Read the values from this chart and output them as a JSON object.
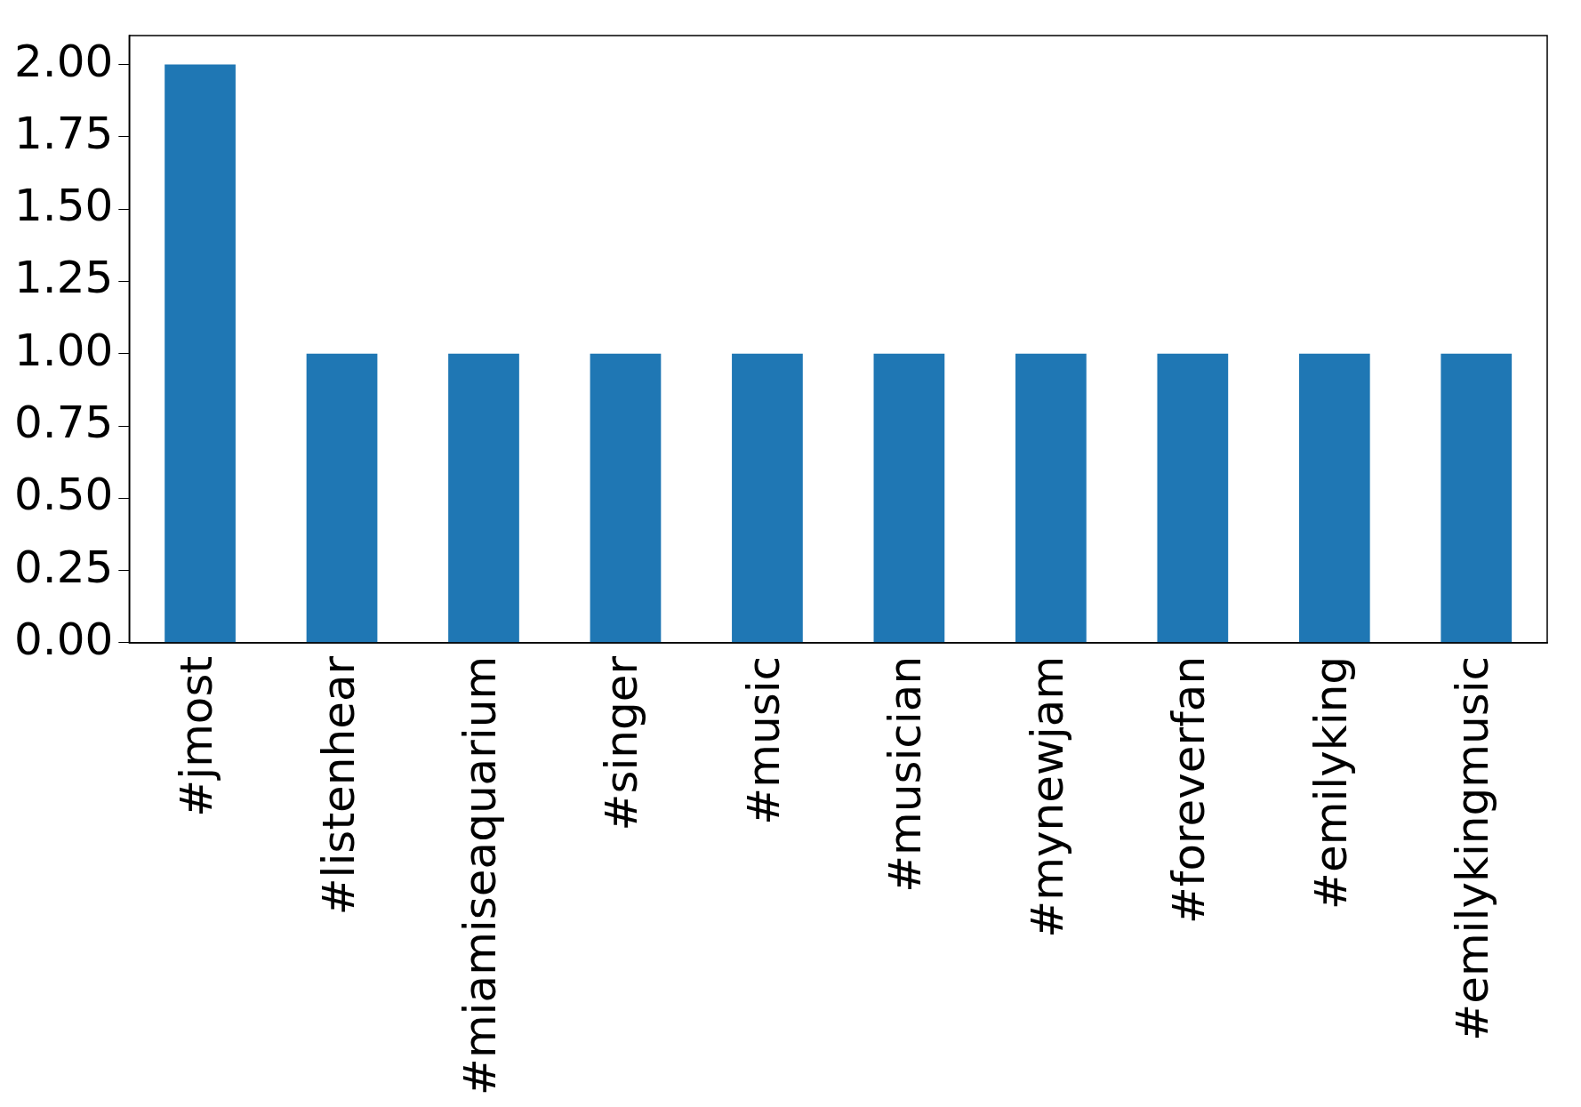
{
  "chart_data": {
    "type": "bar",
    "categories": [
      "#jmost",
      "#listenhear",
      "#miamiseaquarium",
      "#singer",
      "#music",
      "#musician",
      "#mynewjam",
      "#foreverfan",
      "#emilyking",
      "#emilykingmusic"
    ],
    "values": [
      2,
      1,
      1,
      1,
      1,
      1,
      1,
      1,
      1,
      1
    ],
    "color": "#1f77b4",
    "ylim": [
      0,
      2.1
    ],
    "yticks": [
      {
        "value": 0,
        "label": "0.00"
      },
      {
        "value": 0.25,
        "label": "0.25"
      },
      {
        "value": 0.5,
        "label": "0.50"
      },
      {
        "value": 0.75,
        "label": "0.75"
      },
      {
        "value": 1,
        "label": "1.00"
      },
      {
        "value": 1.25,
        "label": "1.25"
      },
      {
        "value": 1.5,
        "label": "1.50"
      },
      {
        "value": 1.75,
        "label": "1.75"
      },
      {
        "value": 2,
        "label": "2.00"
      }
    ],
    "grid": false,
    "legend": false
  }
}
